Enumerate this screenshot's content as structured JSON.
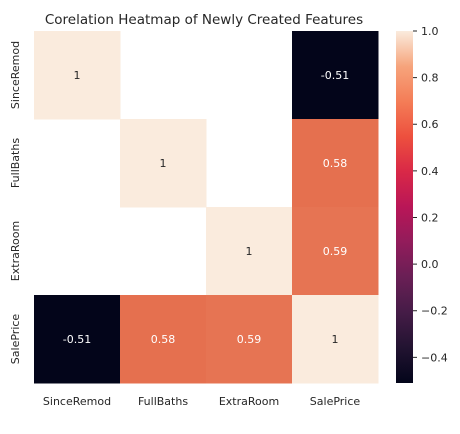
{
  "chart_data": {
    "type": "heatmap",
    "title": "Corelation Heatmap of Newly Created Features",
    "xlabel": "",
    "ylabel": "",
    "rows": [
      "SinceRemod",
      "FullBaths",
      "ExtraRoom",
      "SalePrice"
    ],
    "cols": [
      "SinceRemod",
      "FullBaths",
      "ExtraRoom",
      "SalePrice"
    ],
    "values": [
      [
        1,
        null,
        null,
        -0.51
      ],
      [
        null,
        1,
        null,
        0.58
      ],
      [
        null,
        null,
        1,
        0.59
      ],
      [
        -0.51,
        0.58,
        0.59,
        1
      ]
    ],
    "cell_labels": [
      [
        "1",
        "",
        "",
        "-0.51"
      ],
      [
        "",
        "1",
        "",
        "0.58"
      ],
      [
        "",
        "",
        "1",
        "0.59"
      ],
      [
        "-0.51",
        "0.58",
        "0.59",
        "1"
      ]
    ],
    "colorbar": {
      "colormap": "rocket",
      "vmin": -0.51,
      "vmax": 1.0,
      "ticks": [
        1.0,
        0.8,
        0.6,
        0.4,
        0.2,
        0.0,
        -0.2,
        -0.4
      ],
      "tick_labels": [
        "1.0",
        "0.8",
        "0.6",
        "0.4",
        "0.2",
        "0.0",
        "−0.2",
        "−0.4"
      ]
    },
    "colors": {
      "val_1": "#faebdd",
      "val_0_59": "#e67453",
      "val_0_58": "#e5704f",
      "val_neg_0_51": "#03051a",
      "background": "#ffffff",
      "dark_text": "#262626",
      "light_text": "#ffffff"
    }
  }
}
